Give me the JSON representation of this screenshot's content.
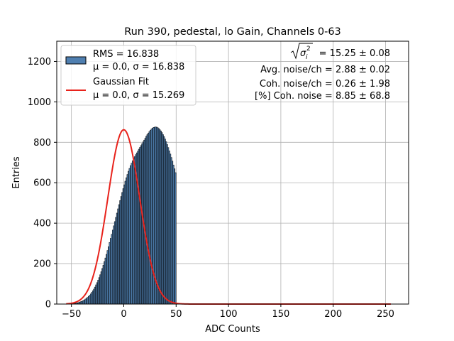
{
  "chart_data": {
    "type": "bar",
    "title": "Run 390, pedestal, lo Gain, Channels 0-63",
    "xlabel": "ADC Counts",
    "ylabel": "Entries",
    "xlim": [
      -64,
      272
    ],
    "ylim": [
      0,
      1300
    ],
    "x_ticks": [
      -50,
      0,
      50,
      100,
      150,
      200,
      250
    ],
    "y_ticks": [
      0,
      200,
      400,
      600,
      800,
      1000,
      1200
    ],
    "grid": true,
    "histogram": {
      "bin_width": 1,
      "x_start": -55,
      "x_end": 255,
      "series": [
        {
          "name": "RMS = 16.838",
          "name_line2": "μ = 0.0, σ = 16.838",
          "color": "#4f7fb0",
          "edge_color": "#000000",
          "x_min": -52,
          "x_max": 50,
          "values": [
            1,
            1,
            2,
            2,
            3,
            4,
            5,
            6,
            7,
            9,
            11,
            13,
            15,
            18,
            21,
            25,
            29,
            33,
            38,
            44,
            50,
            58,
            66,
            74,
            84,
            95,
            106,
            118,
            131,
            145,
            160,
            176,
            192,
            210,
            228,
            246,
            265,
            284,
            305,
            325,
            345,
            366,
            387,
            408,
            429,
            450,
            471,
            492,
            512,
            532,
            552,
            571,
            590,
            608,
            625,
            641,
            657,
            671,
            685,
            697,
            709,
            719,
            729,
            739,
            748,
            757,
            766,
            775,
            784,
            793,
            802,
            811,
            820,
            830,
            838,
            846,
            853,
            860,
            866,
            870,
            874,
            875,
            876,
            875,
            872,
            868,
            862,
            856,
            848,
            838,
            828,
            816,
            803,
            789,
            774,
            758,
            742,
            725,
            707,
            688,
            669,
            650
          ]
        }
      ],
      "values_note": "",
      "values_full": []
    },
    "fit": {
      "name": "Gaussian Fit",
      "name_line2": "μ = 0.0, σ = 15.269",
      "color": "#e8231c",
      "mu": 0.0,
      "sigma": 15.269,
      "amplitude": 862
    },
    "legend_position": "upper-left",
    "annotations": [
      {
        "id": "sigma_i",
        "label_prefix": "σ",
        "label_sub": "i",
        "label_sup": "2",
        "value": "= 15.25 ± 0.08"
      },
      {
        "id": "avg_noise",
        "text": "Avg. noise/ch = 2.88 ± 0.02"
      },
      {
        "id": "coh_noise",
        "text": "Coh. noise/ch = 0.26 ± 1.98"
      },
      {
        "id": "pct_coh",
        "text": "[%] Coh. noise = 8.85 ± 68.8"
      }
    ]
  }
}
